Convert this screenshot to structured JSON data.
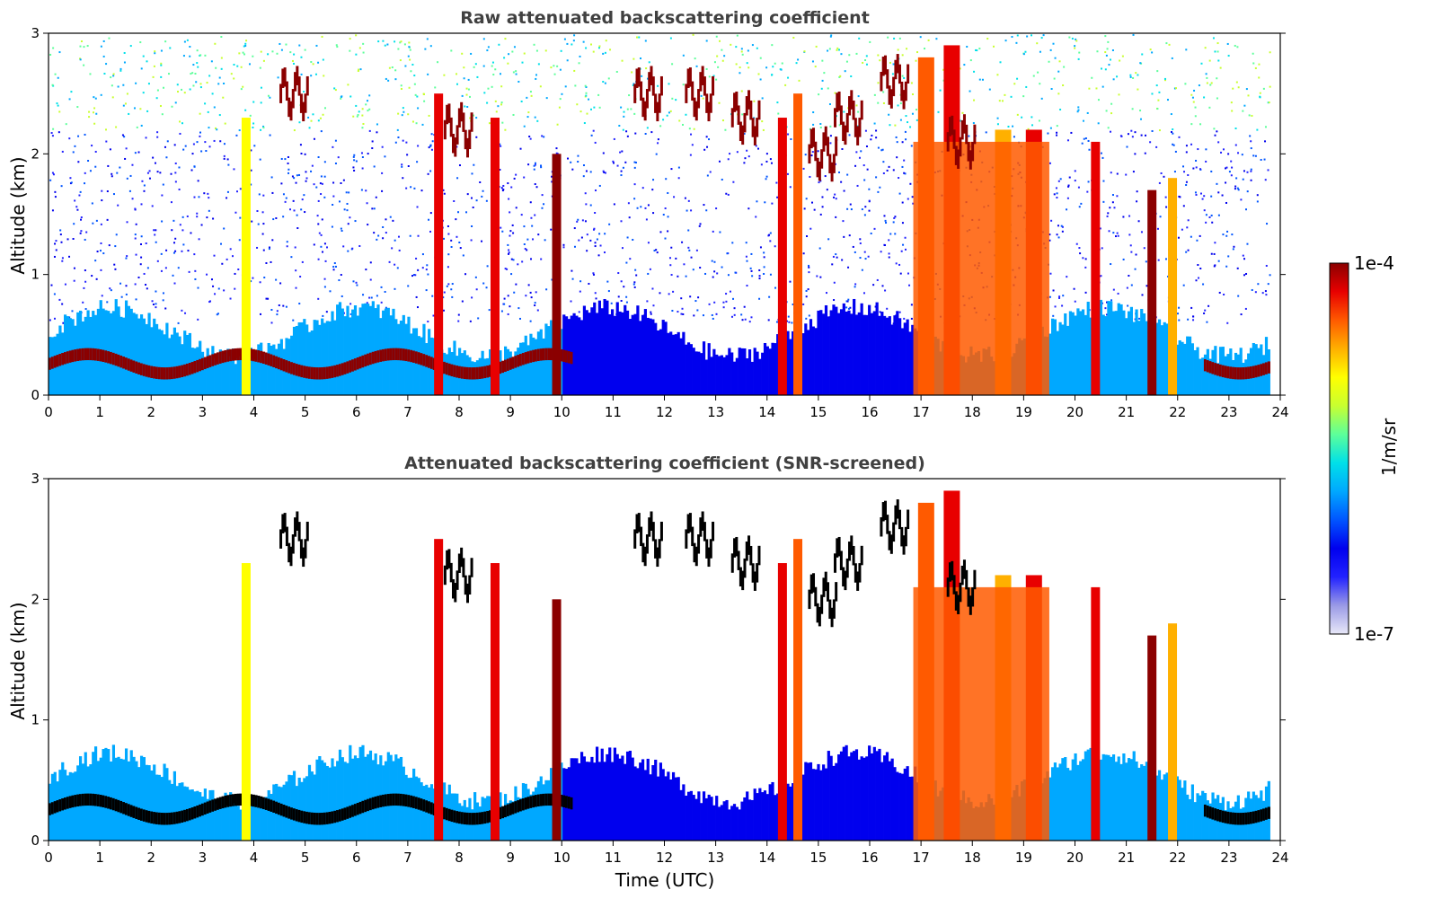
{
  "figure": {
    "xlabel": "Time (UTC)",
    "colorbar": {
      "label": "1/m/sr",
      "max_label": "1e-4",
      "min_label": "1e-7",
      "vmin": 1e-07,
      "vmax": 0.0001,
      "colormap": [
        "#e8e8f8",
        "#9a9ae6",
        "#2222ff",
        "#0000ee",
        "#0055ff",
        "#00a8ff",
        "#00e0e8",
        "#5dff9a",
        "#c8ff30",
        "#ffff00",
        "#ffb000",
        "#ff5a00",
        "#e80000",
        "#8b0000"
      ]
    }
  },
  "chart_data": [
    {
      "type": "heatmap",
      "title": "Raw attenuated backscattering coefficient",
      "xlabel": "",
      "ylabel": "Altitude (km)",
      "xlim": [
        0,
        24
      ],
      "ylim": [
        0,
        3
      ],
      "xticks": [
        "0",
        "1",
        "2",
        "3",
        "4",
        "5",
        "6",
        "7",
        "8",
        "9",
        "10",
        "11",
        "12",
        "13",
        "14",
        "15",
        "16",
        "17",
        "18",
        "19",
        "20",
        "21",
        "22",
        "23",
        "24"
      ],
      "yticks": [
        "0",
        "1",
        "2",
        "3"
      ],
      "screened": false
    },
    {
      "type": "heatmap",
      "title": "Attenuated backscattering coefficient (SNR-screened)",
      "xlabel": "Time (UTC)",
      "ylabel": "Altitude (km)",
      "xlim": [
        0,
        24
      ],
      "ylim": [
        0,
        3
      ],
      "xticks": [
        "0",
        "1",
        "2",
        "3",
        "4",
        "5",
        "6",
        "7",
        "8",
        "9",
        "10",
        "11",
        "12",
        "13",
        "14",
        "15",
        "16",
        "17",
        "18",
        "19",
        "20",
        "21",
        "22",
        "23",
        "24"
      ],
      "yticks": [
        "0",
        "1",
        "2",
        "3"
      ],
      "screened": true
    }
  ]
}
